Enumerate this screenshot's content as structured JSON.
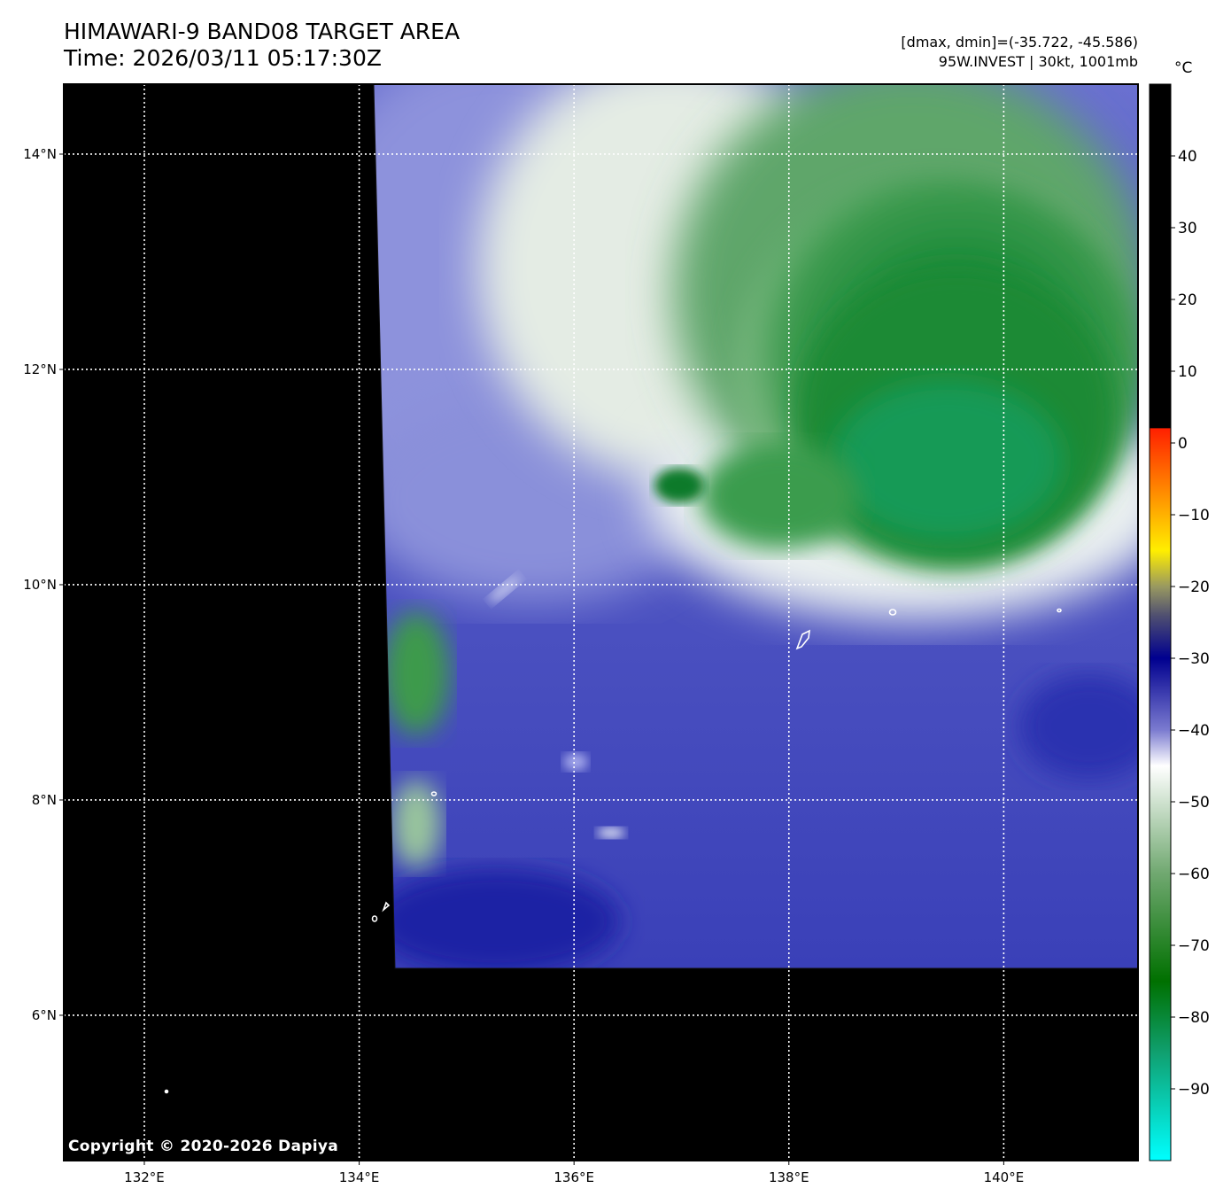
{
  "header": {
    "title_line1": "HIMAWARI-9 BAND08 TARGET AREA",
    "title_line2": "Time: 2026/03/11 05:17:30Z",
    "dmax_dmin": "[dmax, dmin]=(-35.722, -45.586)",
    "storm_info": "95W.INVEST | 30kt, 1001mb"
  },
  "map": {
    "lon_range": [
      131.25,
      141.25
    ],
    "lat_range": [
      4.65,
      14.65
    ],
    "lon_ticks": [
      {
        "value": 132,
        "label": "132°E"
      },
      {
        "value": 134,
        "label": "134°E"
      },
      {
        "value": 136,
        "label": "136°E"
      },
      {
        "value": 138,
        "label": "138°E"
      },
      {
        "value": 140,
        "label": "140°E"
      }
    ],
    "lat_ticks": [
      {
        "value": 14,
        "label": "14°N"
      },
      {
        "value": 12,
        "label": "12°N"
      },
      {
        "value": 10,
        "label": "10°N"
      },
      {
        "value": 8,
        "label": "8°N"
      },
      {
        "value": 6,
        "label": "6°N"
      }
    ],
    "gridlines": "dotted white",
    "background_color": "#000000",
    "copyright": "Copyright © 2020-2026 Dapiya"
  },
  "colorbar": {
    "unit": "°C",
    "range": [
      -100,
      50
    ],
    "ticks": [
      {
        "value": 40,
        "label": "40"
      },
      {
        "value": 30,
        "label": "30"
      },
      {
        "value": 20,
        "label": "20"
      },
      {
        "value": 10,
        "label": "10"
      },
      {
        "value": 0,
        "label": "0"
      },
      {
        "value": -10,
        "label": "−10"
      },
      {
        "value": -20,
        "label": "−20"
      },
      {
        "value": -30,
        "label": "−30"
      },
      {
        "value": -40,
        "label": "−40"
      },
      {
        "value": -50,
        "label": "−50"
      },
      {
        "value": -60,
        "label": "−60"
      },
      {
        "value": -70,
        "label": "−70"
      },
      {
        "value": -80,
        "label": "−80"
      },
      {
        "value": -90,
        "label": "−90"
      }
    ],
    "colors": {
      "warm_above_2": "#000000",
      "t_2": "#ff2000",
      "t_m8": "#ff9900",
      "t_m15": "#ffee00",
      "t_m20": "#999960",
      "t_m24": "#505070",
      "t_m30": "#00008f",
      "t_m40": "#7b7bd0",
      "t_m45": "#ffffff",
      "t_m60": "#70a870",
      "t_m75": "#007000",
      "t_m85": "#10a070",
      "t_m100": "#00ffff"
    }
  },
  "imagery": {
    "cold_cloud_color": "#238b34",
    "moderate_cloud_color": "#5a60c8",
    "deep_blue_color": "#2b2fae",
    "edge_color": "#e8f0e8"
  }
}
